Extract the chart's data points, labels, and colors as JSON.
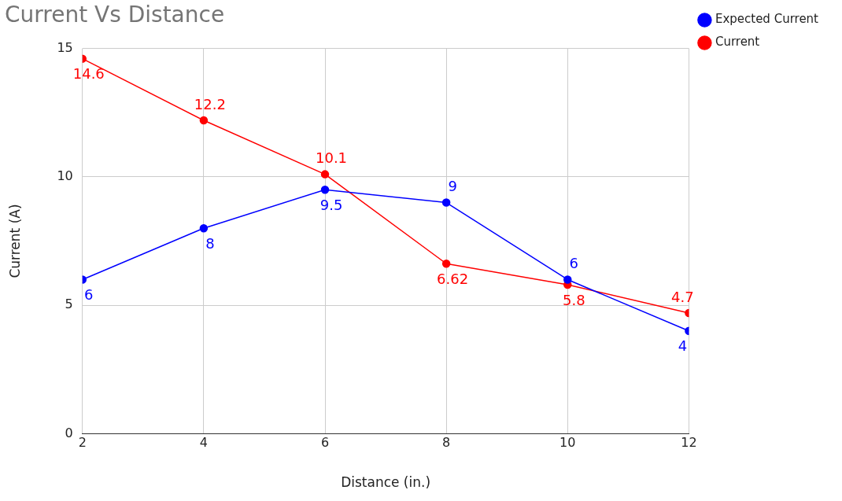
{
  "chart_data": {
    "type": "line",
    "title": "Current Vs Distance",
    "xlabel": "Distance (in.)",
    "ylabel": "Current (A)",
    "x": [
      2,
      4,
      6,
      8,
      10,
      12
    ],
    "series": [
      {
        "name": "Expected Current",
        "color": "#0000ff",
        "values": [
          6,
          8,
          9.5,
          9,
          6,
          4
        ]
      },
      {
        "name": "Current",
        "color": "#ff0000",
        "values": [
          14.6,
          12.2,
          10.1,
          6.62,
          5.8,
          4.7
        ]
      }
    ],
    "xlim": [
      2,
      12
    ],
    "xticks": [
      2,
      4,
      6,
      8,
      10,
      12
    ],
    "ylim": [
      0,
      15
    ],
    "yticks": [
      0,
      5,
      10,
      15
    ],
    "grid": true,
    "legend": "top right",
    "marker": "circle",
    "line_style": "solid",
    "data_labels": true
  }
}
